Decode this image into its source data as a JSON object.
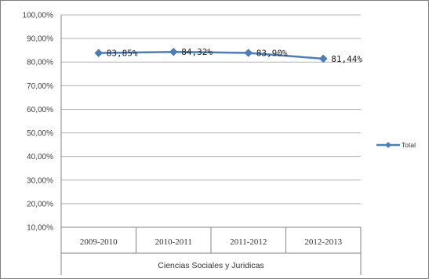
{
  "chart_data": {
    "type": "line",
    "categories": [
      "2009-2010",
      "2010-2011",
      "2011-2012",
      "2012-2013"
    ],
    "group_label": "Ciencias Sociales y Juridicas",
    "series": [
      {
        "name": "Total",
        "values": [
          83.85,
          84.32,
          83.9,
          81.44
        ],
        "labels": [
          "83,85%",
          "84,32%",
          "83,90%",
          "81,44%"
        ]
      }
    ],
    "ylim": [
      10,
      100
    ],
    "yticks": [
      10,
      20,
      30,
      40,
      50,
      60,
      70,
      80,
      90,
      100
    ],
    "ytick_labels": [
      "10,00%",
      "20,00%",
      "30,00%",
      "40,00%",
      "50,00%",
      "60,00%",
      "70,00%",
      "80,00%",
      "90,00%",
      "100,00%"
    ],
    "title": "",
    "xlabel": "",
    "ylabel": "",
    "grid": true,
    "legend_position": "right",
    "series_color": "#4a7ebb",
    "grid_color": "#b3b3b3"
  }
}
